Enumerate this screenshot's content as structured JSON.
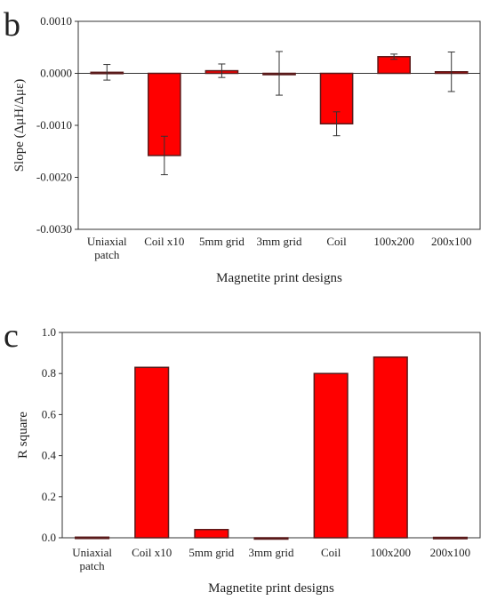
{
  "chart_data": [
    {
      "panel_letter": "b",
      "type": "bar",
      "xlabel": "Magnetite print designs",
      "ylabel": "Slope (ΔμH/Δμε)",
      "ylim": [
        -0.003,
        0.001
      ],
      "yticks": [
        0.001,
        0.0,
        -0.001,
        -0.002,
        -0.003
      ],
      "ytick_labels": [
        "0.0010",
        "0.0000",
        "-0.0010",
        "-0.0020",
        "-0.0030"
      ],
      "categories": [
        "Uniaxial patch",
        "Coil x10",
        "5mm grid",
        "3mm grid",
        "Coil",
        "100x200",
        "200x100"
      ],
      "category_lines": [
        [
          "Uniaxial",
          "patch"
        ],
        [
          "Coil x10"
        ],
        [
          "5mm grid"
        ],
        [
          "3mm grid"
        ],
        [
          "Coil"
        ],
        [
          "100x200"
        ],
        [
          "200x100"
        ]
      ],
      "values": [
        2e-05,
        -0.00158,
        5e-05,
        0.0,
        -0.00097,
        0.00032,
        3e-05
      ],
      "errors": [
        0.00015,
        0.00037,
        0.00013,
        0.00042,
        0.00023,
        5e-05,
        0.00038
      ],
      "bar_color": "#ff0000",
      "border_color": "#5a1a1a",
      "grid": false
    },
    {
      "panel_letter": "c",
      "type": "bar",
      "xlabel": "Magnetite print designs",
      "ylabel": "R square",
      "ylim": [
        0,
        1.0
      ],
      "yticks": [
        0.0,
        0.2,
        0.4,
        0.6,
        0.8,
        1.0
      ],
      "ytick_labels": [
        "0.0",
        "0.2",
        "0.4",
        "0.6",
        "0.8",
        "1.0"
      ],
      "categories": [
        "Uniaxial patch",
        "Coil x10",
        "5mm grid",
        "3mm grid",
        "Coil",
        "100x200",
        "200x100"
      ],
      "category_lines": [
        [
          "Uniaxial",
          "patch"
        ],
        [
          "Coil x10"
        ],
        [
          "5mm grid"
        ],
        [
          "3mm grid"
        ],
        [
          "Coil"
        ],
        [
          "100x200"
        ],
        [
          "200x100"
        ]
      ],
      "values": [
        0.003,
        0.83,
        0.04,
        0.0,
        0.8,
        0.88,
        0.002
      ],
      "bar_color": "#ff0000",
      "border_color": "#5a1a1a",
      "grid": false
    }
  ]
}
